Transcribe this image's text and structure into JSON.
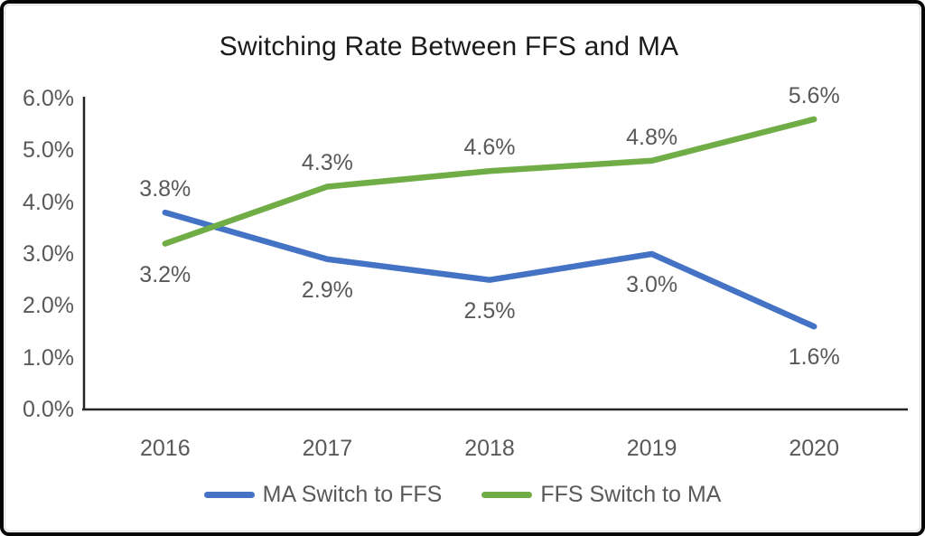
{
  "colors": {
    "series_blue": "#4472C4",
    "series_green": "#70AD47",
    "axis_line": "#262626",
    "label_gray": "#595959",
    "title_text": "#1a1a1a",
    "frame_border": "#060606"
  },
  "chart_data": {
    "type": "line",
    "title": "Switching Rate Between FFS and MA",
    "categories": [
      "2016",
      "2017",
      "2018",
      "2019",
      "2020"
    ],
    "series": [
      {
        "name": "MA Switch to FFS",
        "color": "#4472C4",
        "values": [
          3.8,
          2.9,
          2.5,
          3.0,
          1.6
        ],
        "data_labels": [
          "3.8%",
          "2.9%",
          "2.5%",
          "3.0%",
          "1.6%"
        ],
        "label_sides": [
          "above",
          "below",
          "below",
          "below",
          "below"
        ]
      },
      {
        "name": "FFS Switch to MA",
        "color": "#70AD47",
        "values": [
          3.2,
          4.3,
          4.6,
          4.8,
          5.6
        ],
        "data_labels": [
          "3.2%",
          "4.3%",
          "4.6%",
          "4.8%",
          "5.6%"
        ],
        "label_sides": [
          "below",
          "above",
          "above",
          "above",
          "above"
        ]
      }
    ],
    "y_axis": {
      "min": 0,
      "max": 6,
      "step": 1,
      "tick_labels": [
        "0.0%",
        "1.0%",
        "2.0%",
        "3.0%",
        "4.0%",
        "5.0%",
        "6.0%"
      ]
    },
    "x_axis": {
      "tick_labels": [
        "2016",
        "2017",
        "2018",
        "2019",
        "2020"
      ]
    },
    "legend_position": "bottom",
    "grid": false
  }
}
